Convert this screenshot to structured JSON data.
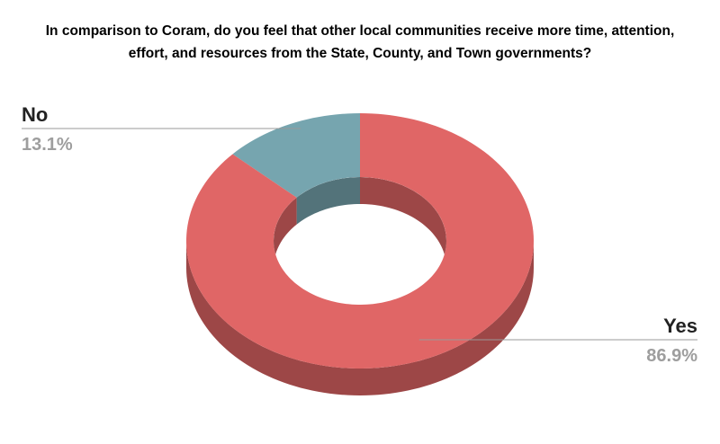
{
  "chart_data": {
    "type": "donut",
    "title": "In comparison to Coram, do you feel that other local communities receive more time, attention, effort, and resources from the State, County, and Town governments?",
    "categories": [
      "No",
      "Yes"
    ],
    "values": [
      13.1,
      86.9
    ],
    "value_labels": [
      "13.1%",
      "86.9%"
    ],
    "colors": [
      "#76a5af",
      "#e06666"
    ]
  }
}
